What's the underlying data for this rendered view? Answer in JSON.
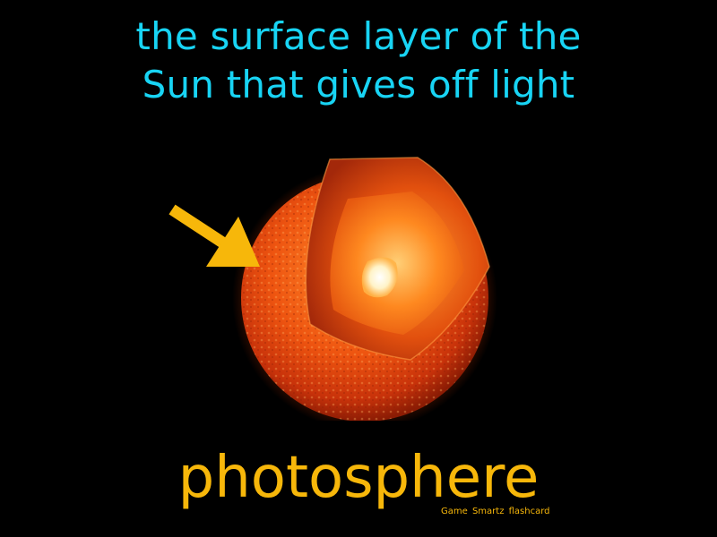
{
  "flashcard": {
    "definition_line1": "the surface layer of the",
    "definition_line2": "Sun that gives off light",
    "term": "photosphere",
    "credit": "Game Smartz flashcard"
  },
  "illustration": {
    "subject": "sun-cutaway",
    "pointer_icon": "arrow-icon"
  },
  "colors": {
    "background": "#000000",
    "definition_text": "#18d4f4",
    "term_text": "#f7b70a",
    "arrow": "#f7b70a",
    "sun_surface": "#e8480c",
    "sun_core": "#ffffff"
  }
}
